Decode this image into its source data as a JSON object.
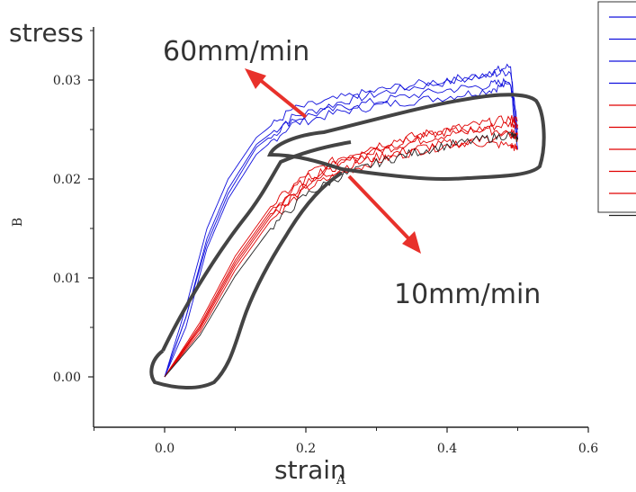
{
  "chart_data": {
    "type": "line",
    "title": "",
    "xlabel": "strain",
    "ylabel": "stress",
    "axis_letters": {
      "x": "A",
      "y": "B"
    },
    "xlim": [
      -0.1,
      0.6
    ],
    "ylim": [
      -0.005,
      0.035
    ],
    "x_ticks": [
      "0.0",
      "0.2",
      "0.4",
      "0.6"
    ],
    "y_ticks": [
      "0.00",
      "0.01",
      "0.02",
      "0.03"
    ],
    "grid": false,
    "legend": "top-right, entries unlabeled",
    "annotations": [
      {
        "text": "60mm/min",
        "color": "#e8312b"
      },
      {
        "text": "10mm/min",
        "color": "#e8312b"
      }
    ],
    "series": [
      {
        "color": "#1010dd",
        "points": [
          [
            0,
            0
          ],
          [
            0.03,
            0.006
          ],
          [
            0.06,
            0.014
          ],
          [
            0.09,
            0.019
          ],
          [
            0.13,
            0.0235
          ],
          [
            0.18,
            0.0262
          ],
          [
            0.25,
            0.0278
          ],
          [
            0.32,
            0.0289
          ],
          [
            0.4,
            0.0298
          ],
          [
            0.46,
            0.0307
          ],
          [
            0.49,
            0.0314
          ],
          [
            0.5,
            0.024
          ]
        ]
      },
      {
        "color": "#1010dd",
        "points": [
          [
            0,
            0
          ],
          [
            0.03,
            0.005
          ],
          [
            0.06,
            0.013
          ],
          [
            0.09,
            0.018
          ],
          [
            0.13,
            0.0225
          ],
          [
            0.18,
            0.0255
          ],
          [
            0.25,
            0.0268
          ],
          [
            0.32,
            0.0276
          ],
          [
            0.4,
            0.0283
          ],
          [
            0.46,
            0.029
          ],
          [
            0.49,
            0.0297
          ],
          [
            0.5,
            0.023
          ]
        ]
      },
      {
        "color": "#1010dd",
        "points": [
          [
            0,
            0
          ],
          [
            0.03,
            0.007
          ],
          [
            0.06,
            0.015
          ],
          [
            0.09,
            0.02
          ],
          [
            0.13,
            0.0242
          ],
          [
            0.18,
            0.027
          ],
          [
            0.25,
            0.0282
          ],
          [
            0.32,
            0.0292
          ],
          [
            0.4,
            0.03
          ],
          [
            0.46,
            0.0305
          ],
          [
            0.49,
            0.0309
          ],
          [
            0.5,
            0.025
          ]
        ]
      },
      {
        "color": "#1010dd",
        "points": [
          [
            0,
            0
          ],
          [
            0.03,
            0.006
          ],
          [
            0.06,
            0.0135
          ],
          [
            0.09,
            0.0185
          ],
          [
            0.13,
            0.0232
          ],
          [
            0.18,
            0.026
          ],
          [
            0.25,
            0.0272
          ],
          [
            0.32,
            0.0281
          ],
          [
            0.4,
            0.029
          ],
          [
            0.46,
            0.0295
          ],
          [
            0.49,
            0.0299
          ],
          [
            0.5,
            0.024
          ]
        ]
      },
      {
        "color": "#e00000",
        "points": [
          [
            0,
            0
          ],
          [
            0.05,
            0.005
          ],
          [
            0.1,
            0.0115
          ],
          [
            0.15,
            0.0165
          ],
          [
            0.2,
            0.0198
          ],
          [
            0.25,
            0.0215
          ],
          [
            0.3,
            0.0228
          ],
          [
            0.35,
            0.0237
          ],
          [
            0.4,
            0.0245
          ],
          [
            0.45,
            0.0251
          ],
          [
            0.49,
            0.0256
          ],
          [
            0.5,
            0.0255
          ]
        ]
      },
      {
        "color": "#e00000",
        "points": [
          [
            0,
            0
          ],
          [
            0.05,
            0.0045
          ],
          [
            0.1,
            0.0108
          ],
          [
            0.15,
            0.0158
          ],
          [
            0.2,
            0.019
          ],
          [
            0.25,
            0.0206
          ],
          [
            0.3,
            0.0218
          ],
          [
            0.35,
            0.0227
          ],
          [
            0.4,
            0.0234
          ],
          [
            0.45,
            0.024
          ],
          [
            0.49,
            0.0244
          ],
          [
            0.5,
            0.0242
          ]
        ]
      },
      {
        "color": "#e00000",
        "points": [
          [
            0,
            0
          ],
          [
            0.05,
            0.0055
          ],
          [
            0.1,
            0.0122
          ],
          [
            0.15,
            0.0172
          ],
          [
            0.2,
            0.0204
          ],
          [
            0.25,
            0.0222
          ],
          [
            0.3,
            0.0234
          ],
          [
            0.35,
            0.0243
          ],
          [
            0.4,
            0.025
          ],
          [
            0.45,
            0.0256
          ],
          [
            0.49,
            0.0261
          ],
          [
            0.5,
            0.0259
          ]
        ]
      },
      {
        "color": "#e00000",
        "points": [
          [
            0,
            0
          ],
          [
            0.05,
            0.0048
          ],
          [
            0.1,
            0.0112
          ],
          [
            0.15,
            0.0162
          ],
          [
            0.2,
            0.0194
          ],
          [
            0.25,
            0.0211
          ],
          [
            0.3,
            0.0222
          ],
          [
            0.35,
            0.023
          ],
          [
            0.4,
            0.0236
          ],
          [
            0.45,
            0.0236
          ],
          [
            0.49,
            0.0234
          ],
          [
            0.5,
            0.023
          ]
        ]
      },
      {
        "color": "#e00000",
        "points": [
          [
            0,
            0
          ],
          [
            0.05,
            0.0052
          ],
          [
            0.1,
            0.0118
          ],
          [
            0.15,
            0.0168
          ],
          [
            0.2,
            0.02
          ],
          [
            0.25,
            0.0218
          ],
          [
            0.3,
            0.023
          ],
          [
            0.35,
            0.024
          ],
          [
            0.4,
            0.0248
          ],
          [
            0.45,
            0.025
          ],
          [
            0.49,
            0.0247
          ],
          [
            0.5,
            0.0245
          ]
        ]
      },
      {
        "color": "#222222",
        "points": [
          [
            0,
            0
          ],
          [
            0.05,
            0.0042
          ],
          [
            0.1,
            0.0102
          ],
          [
            0.15,
            0.015
          ],
          [
            0.2,
            0.0184
          ],
          [
            0.25,
            0.0203
          ],
          [
            0.3,
            0.0216
          ],
          [
            0.35,
            0.0226
          ],
          [
            0.4,
            0.0234
          ],
          [
            0.45,
            0.024
          ],
          [
            0.49,
            0.0245
          ],
          [
            0.5,
            0.024
          ]
        ]
      }
    ]
  }
}
